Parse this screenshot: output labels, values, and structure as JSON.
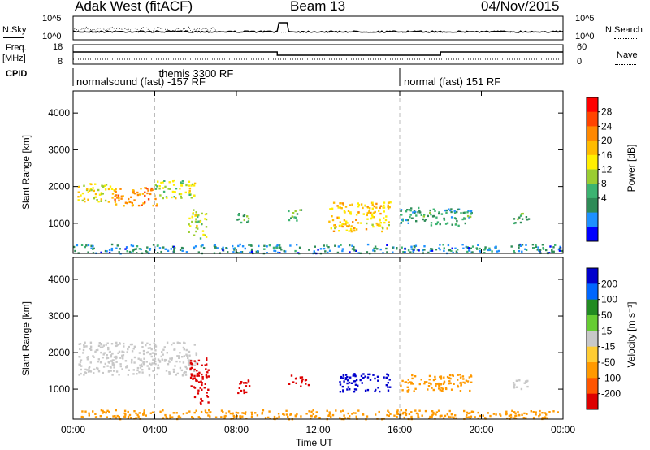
{
  "header": {
    "station": "Adak West (fitACF)",
    "beam": "Beam 13",
    "date": "04/Nov/2015"
  },
  "noise_panel": {
    "left_label": "N.Sky",
    "right_label": "N.Search",
    "ticks_left": [
      "10^5",
      "10^0"
    ],
    "ticks_right": [
      "10^5",
      "10^0"
    ]
  },
  "freq_panel": {
    "left_label": "Freq.",
    "left_unit": "[MHz]",
    "right_label": "Nave",
    "ticks_left": [
      "18",
      "8"
    ],
    "ticks_right": [
      "60",
      "0"
    ]
  },
  "cpid_panel": {
    "label": "CPID",
    "modes": [
      {
        "text": "normalsound (fast) -157 RF"
      },
      {
        "text": "themis 3300 RF"
      },
      {
        "text": "normal (fast) 151 RF"
      }
    ]
  },
  "power_panel": {
    "ylabel": "Slant Range [km]",
    "yticks": [
      "4000",
      "3000",
      "2000",
      "1000"
    ],
    "colorbar_label": "Power [dB]",
    "colorbar_ticks": [
      "28",
      "24",
      "20",
      "16",
      "12",
      "8",
      "4"
    ],
    "colorbar_colors": [
      "#ff0000",
      "#ff4400",
      "#ff8800",
      "#ffbb00",
      "#ffee00",
      "#9acd32",
      "#3cb371",
      "#2e8b57",
      "#1e90ff",
      "#0000ff"
    ]
  },
  "velocity_panel": {
    "ylabel": "Slant Range [km]",
    "yticks": [
      "4000",
      "3000",
      "2000",
      "1000"
    ],
    "colorbar_label": "Velocity [m s⁻¹]",
    "colorbar_ticks": [
      "200",
      "100",
      "50",
      "15",
      "-15",
      "-50",
      "-100",
      "-200"
    ],
    "colorbar_colors": [
      "#0000cc",
      "#0066ff",
      "#228b22",
      "#66cc33",
      "#c8c8c8",
      "#ffcc33",
      "#ff9900",
      "#ff5500",
      "#dd0000"
    ]
  },
  "xaxis": {
    "ticks": [
      "00:00",
      "04:00",
      "08:00",
      "12:00",
      "16:00",
      "20:00",
      "00:00"
    ],
    "label": "Time UT"
  },
  "chart_data": {
    "type": "heatmap",
    "title": "Adak West (fitACF) Beam 13 04/Nov/2015",
    "xlabel": "Time UT",
    "ylabel": "Slant Range [km]",
    "xlim_hours": [
      0,
      24
    ],
    "ylim_km": [
      180,
      4600
    ],
    "mode_changes_hours": [
      4,
      16
    ],
    "power_blobs": [
      {
        "t": [
          0.2,
          2.0
        ],
        "r": [
          1600,
          2100
        ],
        "level_db": 16
      },
      {
        "t": [
          2.0,
          4.2
        ],
        "r": [
          1500,
          2000
        ],
        "level_db": 22
      },
      {
        "t": [
          4.0,
          6.0
        ],
        "r": [
          1700,
          2200
        ],
        "level_db": 14
      },
      {
        "t": [
          5.6,
          6.5
        ],
        "r": [
          600,
          1400
        ],
        "level_db": 14
      },
      {
        "t": [
          8.0,
          8.6
        ],
        "r": [
          900,
          1300
        ],
        "level_db": 10
      },
      {
        "t": [
          10.5,
          11.2
        ],
        "r": [
          1100,
          1400
        ],
        "level_db": 10
      },
      {
        "t": [
          12.5,
          15.5
        ],
        "r": [
          800,
          1600
        ],
        "level_db": 18
      },
      {
        "t": [
          16.0,
          19.5
        ],
        "r": [
          950,
          1450
        ],
        "level_db": 8
      },
      {
        "t": [
          21.5,
          22.3
        ],
        "r": [
          1000,
          1300
        ],
        "level_db": 10
      },
      {
        "t": [
          0,
          24
        ],
        "r": [
          200,
          450
        ],
        "level_db": 6
      }
    ],
    "velocity_blobs": [
      {
        "t": [
          0.2,
          6.0
        ],
        "r": [
          1400,
          2300
        ],
        "vel": 0
      },
      {
        "t": [
          5.7,
          6.6
        ],
        "r": [
          600,
          1900
        ],
        "vel": -200
      },
      {
        "t": [
          8.0,
          8.7
        ],
        "r": [
          900,
          1300
        ],
        "vel": -200
      },
      {
        "t": [
          10.5,
          11.5
        ],
        "r": [
          1100,
          1400
        ],
        "vel": -200
      },
      {
        "t": [
          13.0,
          15.5
        ],
        "r": [
          950,
          1450
        ],
        "vel": 200
      },
      {
        "t": [
          16.0,
          19.5
        ],
        "r": [
          950,
          1450
        ],
        "vel": -50
      },
      {
        "t": [
          21.5,
          22.3
        ],
        "r": [
          1000,
          1300
        ],
        "vel": 0
      },
      {
        "t": [
          0,
          24
        ],
        "r": [
          200,
          450
        ],
        "vel": -50
      }
    ]
  }
}
